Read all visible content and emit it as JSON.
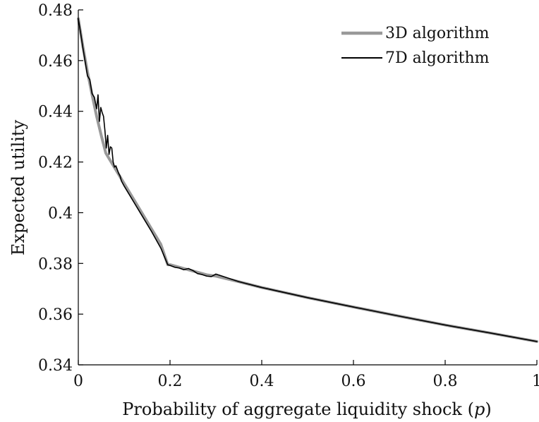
{
  "chart_data": {
    "type": "line",
    "xlabel": "Probability of aggregate liquidity shock (p)",
    "ylabel": "Expected utility",
    "xlim": [
      0,
      1
    ],
    "ylim": [
      0.34,
      0.48
    ],
    "x_ticks": [
      0,
      0.2,
      0.4,
      0.6,
      0.8,
      1
    ],
    "x_tick_labels": [
      "0",
      "0.2",
      "0.4",
      "0.6",
      "0.8",
      "1"
    ],
    "y_ticks": [
      0.34,
      0.36,
      0.38,
      0.4,
      0.42,
      0.44,
      0.46,
      0.48
    ],
    "y_tick_labels": [
      "0.34",
      "0.36",
      "0.38",
      "0.4",
      "0.42",
      "0.44",
      "0.46",
      "0.48"
    ],
    "grid": false,
    "legend_position": "top-right",
    "series": [
      {
        "name": "3D algorithm",
        "color": "#999999",
        "width": 4,
        "x": [
          0,
          0.01,
          0.02,
          0.03,
          0.04,
          0.05,
          0.06,
          0.07,
          0.08,
          0.09,
          0.1,
          0.12,
          0.14,
          0.16,
          0.18,
          0.195,
          0.2,
          0.22,
          0.24,
          0.26,
          0.28,
          0.3,
          0.35,
          0.4,
          0.5,
          0.6,
          0.7,
          0.8,
          0.9,
          1.0
        ],
        "y": [
          0.4765,
          0.4655,
          0.4555,
          0.4465,
          0.438,
          0.4305,
          0.4235,
          0.4205,
          0.4175,
          0.4145,
          0.4115,
          0.4055,
          0.3995,
          0.3935,
          0.3875,
          0.3795,
          0.3795,
          0.3785,
          0.3775,
          0.3765,
          0.3755,
          0.375,
          0.3728,
          0.3705,
          0.3665,
          0.3628,
          0.3592,
          0.3557,
          0.3525,
          0.3492
        ]
      },
      {
        "name": "7D algorithm",
        "color": "#000000",
        "width": 1.6,
        "x": [
          0,
          0.005,
          0.01,
          0.015,
          0.02,
          0.025,
          0.03,
          0.035,
          0.04,
          0.043,
          0.046,
          0.049,
          0.052,
          0.055,
          0.058,
          0.061,
          0.064,
          0.067,
          0.07,
          0.073,
          0.076,
          0.079,
          0.082,
          0.085,
          0.088,
          0.091,
          0.094,
          0.1,
          0.12,
          0.14,
          0.16,
          0.18,
          0.195,
          0.2,
          0.21,
          0.22,
          0.23,
          0.24,
          0.25,
          0.26,
          0.27,
          0.28,
          0.29,
          0.3,
          0.31,
          0.35,
          0.4,
          0.5,
          0.6,
          0.7,
          0.8,
          0.9,
          1.0
        ],
        "y": [
          0.4765,
          0.471,
          0.465,
          0.4595,
          0.454,
          0.4525,
          0.447,
          0.4455,
          0.441,
          0.4465,
          0.436,
          0.4415,
          0.4395,
          0.438,
          0.4325,
          0.4255,
          0.4305,
          0.423,
          0.426,
          0.4255,
          0.42,
          0.418,
          0.4185,
          0.417,
          0.4155,
          0.4145,
          0.4125,
          0.4105,
          0.4045,
          0.3985,
          0.3925,
          0.386,
          0.3795,
          0.3792,
          0.3785,
          0.3782,
          0.3775,
          0.378,
          0.3772,
          0.376,
          0.3756,
          0.375,
          0.3748,
          0.3758,
          0.3752,
          0.3728,
          0.3705,
          0.3665,
          0.3628,
          0.3592,
          0.3557,
          0.3525,
          0.3492
        ]
      }
    ]
  }
}
